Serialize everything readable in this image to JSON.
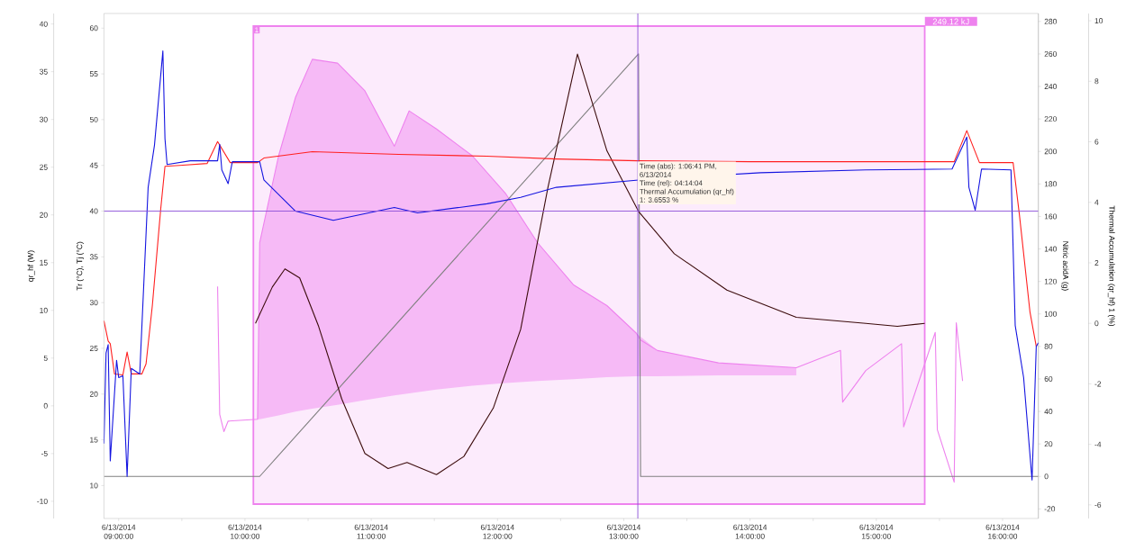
{
  "chart_data": [
    {
      "type": "line",
      "tick_labels": "y",
      "xlim": [
        "2014-06-13T08:53",
        "2014-06-13T16:17"
      ],
      "ylabel": "qr_hf (W)",
      "ylim": [
        -11.8,
        41.1
      ],
      "yticks": [
        -10,
        -5,
        0,
        5,
        10,
        15,
        20,
        25,
        30,
        35,
        40
      ],
      "series": [
        {
          "color": "#ee82ee",
          "x": [
            "2014-06-13T09:47",
            "2014-06-13T09:48",
            "2014-06-13T09:50",
            "2014-06-13T09:52",
            "2014-06-13T10:06",
            "2014-06-13T10:07",
            "2014-06-13T10:16",
            "2014-06-13T10:24",
            "2014-06-13T10:32",
            "2014-06-13T10:44",
            "2014-06-13T10:57",
            "2014-06-13T11:11",
            "2014-06-13T11:18",
            "2014-06-13T11:31",
            "2014-06-13T11:48",
            "2014-06-13T12:04",
            "2014-06-13T12:19",
            "2014-06-13T12:36",
            "2014-06-13T12:52",
            "2014-06-13T13:06",
            "2014-06-13T13:08",
            "2014-06-13T13:16",
            "2014-06-13T13:45",
            "2014-06-13T14:22",
            "2014-06-13T14:43",
            "2014-06-13T14:44",
            "2014-06-13T14:55",
            "2014-06-13T15:12",
            "2014-06-13T15:13",
            "2014-06-13T15:28",
            "2014-06-13T15:29",
            "2014-06-13T15:37",
            "2014-06-13T15:38",
            "2014-06-13T15:41"
          ],
          "values": [
            12.5,
            -0.9,
            -2.7,
            -1.6,
            -1.4,
            17.1,
            26.2,
            32.3,
            36.3,
            35.9,
            33.0,
            27.2,
            30.9,
            29.0,
            26.2,
            22.2,
            17.1,
            12.7,
            10.5,
            7.6,
            6.9,
            5.8,
            4.5,
            4.0,
            5.8,
            0.4,
            3.7,
            6.5,
            -2.2,
            7.7,
            -2.5,
            -8.0,
            8.7,
            2.6
          ],
          "lower": [
            null,
            null,
            null,
            null,
            -1.4,
            -1.4,
            -1.0,
            -0.6,
            -0.3,
            0.1,
            0.6,
            1.1,
            1.3,
            1.7,
            2.1,
            2.4,
            2.6,
            2.8,
            3.0,
            3.1,
            null,
            3.1,
            3.2,
            3.2,
            null,
            null,
            null,
            null,
            null,
            null,
            null,
            null,
            null,
            null
          ],
          "upper": [
            null,
            null,
            null,
            null,
            -1.4,
            17.1,
            26.2,
            32.3,
            36.3,
            35.9,
            33.0,
            27.2,
            30.9,
            29.0,
            26.2,
            22.2,
            17.1,
            12.7,
            10.5,
            7.6,
            null,
            5.8,
            4.5,
            4.0,
            null,
            null,
            null,
            null,
            null,
            null,
            null,
            null,
            null,
            null
          ]
        }
      ],
      "bands": [
        {
          "axis": "x",
          "from": "2014-06-13T10:04",
          "to": "2014-06-13T15:23",
          "label": "249.12 kJ",
          "color": "#fcebfc"
        }
      ],
      "annotations": [
        "1"
      ]
    },
    {
      "type": "line",
      "xlim": [
        "2014-06-13T08:53",
        "2014-06-13T16:17"
      ],
      "xticks": [
        {
          "value": "2014-06-13T09:00",
          "label": "6/13/2014 09:00:00"
        },
        {
          "value": "2014-06-13T09:30",
          "label": null
        },
        {
          "value": "2014-06-13T10:00",
          "label": "6/13/2014 10:00:00"
        },
        {
          "value": "2014-06-13T10:30",
          "label": null
        },
        {
          "value": "2014-06-13T11:00",
          "label": "6/13/2014 11:00:00"
        },
        {
          "value": "2014-06-13T11:30",
          "label": null
        },
        {
          "value": "2014-06-13T12:00",
          "label": "6/13/2014 12:00:00"
        },
        {
          "value": "2014-06-13T12:30",
          "label": null
        },
        {
          "value": "2014-06-13T13:00",
          "label": "6/13/2014 13:00:00"
        },
        {
          "value": "2014-06-13T13:30",
          "label": null
        },
        {
          "value": "2014-06-13T14:00",
          "label": "6/13/2014 14:00:00"
        },
        {
          "value": "2014-06-13T14:30",
          "label": null
        },
        {
          "value": "2014-06-13T15:00",
          "label": "6/13/2014 15:00:00"
        },
        {
          "value": "2014-06-13T15:30",
          "label": null
        },
        {
          "value": "2014-06-13T16:00",
          "label": "6/13/2014 16:00:00"
        }
      ],
      "ylabel": "Tr (°C), Tj (°C)",
      "ylim": [
        6.4,
        61.6
      ],
      "yticks": [
        10,
        15,
        20,
        25,
        30,
        35,
        40,
        45,
        50,
        55,
        60
      ],
      "y2label": "Nitric acidA (g)",
      "y2lim": [
        -25.9,
        284.9
      ],
      "y2ticks": [
        -20,
        0,
        20,
        40,
        60,
        80,
        100,
        120,
        140,
        160,
        180,
        200,
        220,
        240,
        260,
        280
      ],
      "y3label": "Thermal Accumulation (qr_hf) 1 (%)",
      "y3lim": [
        -6.45,
        10.24
      ],
      "y3ticks": [
        -6,
        -4,
        -2,
        0,
        2,
        4,
        6,
        8,
        10
      ],
      "series": [
        {
          "axis": "y2",
          "color": "#808080",
          "x": [
            "2014-06-13T08:53",
            "2014-06-13T10:07",
            "2014-06-13T13:07",
            "2014-06-13T13:08",
            "2014-06-13T16:17"
          ],
          "values": [
            0,
            0,
            260,
            0,
            0
          ]
        },
        {
          "axis": "y3",
          "color": "#3c0c0c",
          "x": [
            "2014-06-13T10:05",
            "2014-06-13T10:13",
            "2014-06-13T10:19",
            "2014-06-13T10:26",
            "2014-06-13T10:35",
            "2014-06-13T10:46",
            "2014-06-13T10:57",
            "2014-06-13T11:08",
            "2014-06-13T11:17",
            "2014-06-13T11:31",
            "2014-06-13T11:44",
            "2014-06-13T11:58",
            "2014-06-13T12:11",
            "2014-06-13T12:24",
            "2014-06-13T12:38",
            "2014-06-13T12:52",
            "2014-06-13T13:07",
            "2014-06-13T13:24",
            "2014-06-13T13:49",
            "2014-06-13T14:22",
            "2014-06-13T14:55",
            "2014-06-13T15:10",
            "2014-06-13T15:23"
          ],
          "values": [
            0.0,
            1.2,
            1.8,
            1.5,
            -0.1,
            -2.5,
            -4.3,
            -4.8,
            -4.6,
            -5.0,
            -4.4,
            -2.8,
            -0.2,
            4.5,
            8.9,
            5.7,
            3.7,
            2.3,
            1.1,
            0.2,
            0.0,
            -0.1,
            0.0
          ]
        },
        {
          "color": "#ff2020",
          "x": [
            "2014-06-13T08:53",
            "2014-06-13T08:55",
            "2014-06-13T08:56",
            "2014-06-13T08:58",
            "2014-06-13T09:02",
            "2014-06-13T09:04",
            "2014-06-13T09:06",
            "2014-06-13T09:11",
            "2014-06-13T09:13",
            "2014-06-13T09:16",
            "2014-06-13T09:20",
            "2014-06-13T09:22",
            "2014-06-13T09:29",
            "2014-06-13T09:42",
            "2014-06-13T09:47",
            "2014-06-13T09:53",
            "2014-06-13T10:06",
            "2014-06-13T10:09",
            "2014-06-13T10:32",
            "2014-06-13T11:13",
            "2014-06-13T11:55",
            "2014-06-13T12:28",
            "2014-06-13T13:07",
            "2014-06-13T14:00",
            "2014-06-13T15:00",
            "2014-06-13T15:37",
            "2014-06-13T15:43",
            "2014-06-13T15:49",
            "2014-06-13T15:59",
            "2014-06-13T16:05",
            "2014-06-13T16:08",
            "2014-06-13T16:13",
            "2014-06-13T16:16"
          ],
          "values": [
            28.0,
            25.8,
            25.5,
            22.2,
            22.1,
            24.6,
            22.2,
            22.2,
            23.3,
            29.7,
            40.3,
            44.9,
            45.0,
            45.2,
            47.6,
            45.3,
            45.3,
            45.8,
            46.5,
            46.2,
            46.0,
            45.7,
            45.5,
            45.4,
            45.4,
            45.4,
            48.8,
            45.3,
            45.3,
            45.3,
            39.6,
            29.0,
            25.2
          ]
        },
        {
          "color": "#1414e0",
          "x": [
            "2014-06-13T08:53",
            "2014-06-13T08:54",
            "2014-06-13T08:55",
            "2014-06-13T08:56",
            "2014-06-13T08:59",
            "2014-06-13T09:00",
            "2014-06-13T09:02",
            "2014-06-13T09:04",
            "2014-06-13T09:06",
            "2014-06-13T09:10",
            "2014-06-13T09:14",
            "2014-06-13T09:17",
            "2014-06-13T09:21",
            "2014-06-13T09:22",
            "2014-06-13T09:23",
            "2014-06-13T09:34",
            "2014-06-13T09:47",
            "2014-06-13T09:48",
            "2014-06-13T09:49",
            "2014-06-13T09:52",
            "2014-06-13T09:54",
            "2014-06-13T10:07",
            "2014-06-13T10:09",
            "2014-06-13T10:24",
            "2014-06-13T10:42",
            "2014-06-13T11:11",
            "2014-06-13T11:22",
            "2014-06-13T11:55",
            "2014-06-13T12:11",
            "2014-06-13T12:28",
            "2014-06-13T13:07",
            "2014-06-13T14:05",
            "2014-06-13T14:55",
            "2014-06-13T15:36",
            "2014-06-13T15:43",
            "2014-06-13T15:44",
            "2014-06-13T15:47",
            "2014-06-13T15:50",
            "2014-06-13T16:04",
            "2014-06-13T16:06",
            "2014-06-13T16:10",
            "2014-06-13T16:14",
            "2014-06-13T16:16",
            "2014-06-13T16:17"
          ],
          "values": [
            14.6,
            24.5,
            25.4,
            12.7,
            23.7,
            21.8,
            22.0,
            11.0,
            22.8,
            22.2,
            42.6,
            47.2,
            57.5,
            47.9,
            45.1,
            45.5,
            45.5,
            47.3,
            44.5,
            43.0,
            45.4,
            45.4,
            43.4,
            40.0,
            39.0,
            40.4,
            39.8,
            40.8,
            41.5,
            42.6,
            43.4,
            44.2,
            44.5,
            44.6,
            48.1,
            42.6,
            40.1,
            44.6,
            44.5,
            27.5,
            21.8,
            10.6,
            25.2,
            25.6
          ]
        }
      ],
      "ref_lines": [
        {
          "axis": "y",
          "value": 40,
          "color": "#8a4fd8"
        },
        {
          "axis": "x",
          "value": "2014-06-13T13:06:41",
          "color": "#8a4fd8"
        }
      ],
      "annotations": [
        "Time (abs): 1:06:41 PM,",
        "6/13/2014",
        "Time (rel): 04:14:04",
        "Thermal Accumulation (qr_hf)",
        "1: 3.6553 %"
      ]
    }
  ]
}
